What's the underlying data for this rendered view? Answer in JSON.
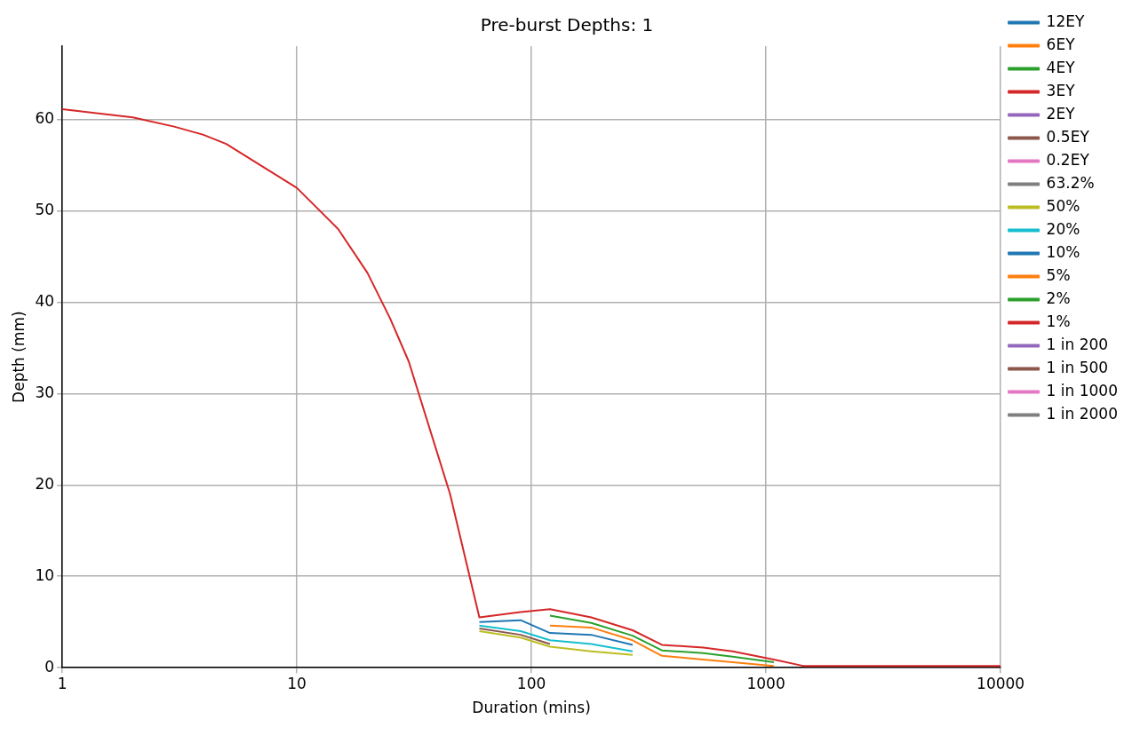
{
  "chart_data": {
    "type": "line",
    "title": "Pre-burst Depths: 1",
    "xlabel": "Duration (mins)",
    "ylabel": "Depth (mm)",
    "x": [
      1,
      2,
      3,
      4,
      5,
      10,
      15,
      20,
      25,
      30,
      45,
      60,
      90,
      120,
      180,
      270,
      360,
      540,
      720,
      1080,
      1440,
      2160,
      2880,
      4320,
      5760,
      7200,
      8640,
      10000
    ],
    "xlim": [
      1,
      10000
    ],
    "xticks": [
      1,
      10,
      100,
      1000,
      10000
    ],
    "ylim": [
      0,
      68
    ],
    "yticks": [
      0,
      10,
      20,
      30,
      40,
      50,
      60
    ],
    "log": "x",
    "grid": true,
    "legend": "right",
    "series": [
      {
        "name": "12EY",
        "color": "#1f77b4",
        "values": [
          null,
          null,
          null,
          null,
          null,
          null,
          null,
          null,
          null,
          null,
          null,
          null,
          null,
          null,
          null,
          null,
          null,
          null,
          null,
          null,
          null,
          null,
          null,
          null,
          null,
          null,
          null,
          null
        ]
      },
      {
        "name": "6EY",
        "color": "#ff7f0e",
        "values": [
          null,
          null,
          null,
          null,
          null,
          null,
          null,
          null,
          null,
          null,
          null,
          null,
          null,
          null,
          null,
          null,
          null,
          null,
          null,
          null,
          null,
          null,
          null,
          null,
          null,
          null,
          null,
          null
        ]
      },
      {
        "name": "4EY",
        "color": "#2ca02c",
        "values": [
          null,
          null,
          null,
          null,
          null,
          null,
          null,
          null,
          null,
          null,
          null,
          null,
          null,
          null,
          null,
          null,
          null,
          null,
          null,
          null,
          null,
          null,
          null,
          null,
          null,
          null,
          null,
          null
        ]
      },
      {
        "name": "3EY",
        "color": "#d62728",
        "values": [
          null,
          null,
          null,
          null,
          null,
          null,
          null,
          null,
          null,
          null,
          null,
          null,
          null,
          null,
          null,
          null,
          null,
          null,
          null,
          null,
          null,
          null,
          null,
          null,
          null,
          null,
          null,
          null
        ]
      },
      {
        "name": "2EY",
        "color": "#9467bd",
        "values": [
          null,
          null,
          null,
          null,
          null,
          null,
          null,
          null,
          null,
          null,
          null,
          null,
          null,
          null,
          null,
          null,
          null,
          null,
          null,
          null,
          null,
          null,
          null,
          null,
          null,
          null,
          null,
          null
        ]
      },
      {
        "name": "0.5EY",
        "color": "#8c564b",
        "values": [
          null,
          null,
          null,
          null,
          null,
          null,
          null,
          null,
          null,
          null,
          null,
          4.3,
          3.6,
          2.6,
          null,
          null,
          null,
          null,
          null,
          null,
          null,
          null,
          null,
          null,
          null,
          null,
          null,
          null
        ]
      },
      {
        "name": "0.2EY",
        "color": "#e377c2",
        "values": [
          null,
          null,
          null,
          null,
          null,
          null,
          null,
          null,
          null,
          null,
          null,
          null,
          null,
          null,
          null,
          null,
          null,
          null,
          null,
          null,
          null,
          null,
          null,
          null,
          null,
          null,
          null,
          null
        ]
      },
      {
        "name": "63.2%",
        "color": "#7f7f7f",
        "values": [
          null,
          null,
          null,
          null,
          null,
          null,
          null,
          null,
          null,
          null,
          null,
          null,
          null,
          null,
          null,
          null,
          null,
          null,
          null,
          null,
          null,
          null,
          null,
          null,
          null,
          null,
          null,
          null
        ]
      },
      {
        "name": "50%",
        "color": "#bcbd22",
        "values": [
          null,
          null,
          null,
          null,
          null,
          null,
          null,
          null,
          null,
          null,
          null,
          4.0,
          3.3,
          2.3,
          1.8,
          1.4,
          null,
          null,
          null,
          null,
          null,
          null,
          null,
          null,
          null,
          null,
          null,
          null
        ]
      },
      {
        "name": "20%",
        "color": "#17becf",
        "values": [
          null,
          null,
          null,
          null,
          null,
          null,
          null,
          null,
          null,
          null,
          null,
          4.6,
          4.0,
          3.0,
          2.6,
          1.8,
          null,
          null,
          null,
          null,
          null,
          null,
          null,
          null,
          null,
          null,
          null,
          null
        ]
      },
      {
        "name": "10%",
        "color": "#1f77b4",
        "values": [
          null,
          null,
          null,
          null,
          null,
          null,
          null,
          null,
          null,
          null,
          null,
          5.0,
          5.2,
          3.8,
          3.6,
          2.5,
          null,
          null,
          null,
          null,
          null,
          null,
          null,
          null,
          null,
          null,
          null,
          null
        ]
      },
      {
        "name": "5%",
        "color": "#ff7f0e",
        "values": [
          null,
          null,
          null,
          null,
          null,
          null,
          null,
          null,
          null,
          null,
          null,
          null,
          null,
          4.6,
          4.4,
          3.0,
          1.3,
          0.9,
          0.6,
          0.2,
          null,
          null,
          null,
          null,
          null,
          null,
          null,
          null
        ]
      },
      {
        "name": "2%",
        "color": "#2ca02c",
        "values": [
          null,
          null,
          null,
          null,
          null,
          null,
          null,
          null,
          null,
          null,
          null,
          null,
          null,
          5.7,
          4.9,
          3.5,
          1.9,
          1.6,
          1.2,
          0.6,
          null,
          null,
          null,
          null,
          null,
          null,
          null,
          null
        ]
      },
      {
        "name": "1%",
        "color": "#d62728",
        "values": [
          61.1,
          60.2,
          59.2,
          58.3,
          57.3,
          52.5,
          48,
          43.2,
          38.2,
          33.5,
          19,
          5.5,
          6.1,
          6.4,
          5.5,
          4.1,
          2.5,
          2.2,
          1.8,
          0.9,
          0.2,
          0.2,
          0.2,
          0.2,
          0.2,
          0.2,
          0.2,
          0.2
        ]
      },
      {
        "name": "1 in 200",
        "color": "#9467bd",
        "values": [
          null,
          null,
          null,
          null,
          null,
          null,
          null,
          null,
          null,
          null,
          null,
          null,
          null,
          null,
          null,
          null,
          null,
          null,
          null,
          null,
          null,
          null,
          null,
          null,
          null,
          null,
          null,
          null
        ]
      },
      {
        "name": "1 in 500",
        "color": "#8c564b",
        "values": [
          null,
          null,
          null,
          null,
          null,
          null,
          null,
          null,
          null,
          null,
          null,
          null,
          null,
          null,
          null,
          null,
          null,
          null,
          null,
          null,
          null,
          null,
          null,
          null,
          null,
          null,
          null,
          null
        ]
      },
      {
        "name": "1 in 1000",
        "color": "#e377c2",
        "values": [
          null,
          null,
          null,
          null,
          null,
          null,
          null,
          null,
          null,
          null,
          null,
          null,
          null,
          null,
          null,
          null,
          null,
          null,
          null,
          null,
          null,
          null,
          null,
          null,
          null,
          null,
          null,
          null
        ]
      },
      {
        "name": "1 in 2000",
        "color": "#7f7f7f",
        "values": [
          null,
          null,
          null,
          null,
          null,
          null,
          null,
          null,
          null,
          null,
          null,
          null,
          null,
          null,
          null,
          null,
          null,
          null,
          null,
          null,
          null,
          null,
          null,
          null,
          null,
          null,
          null,
          null
        ]
      }
    ]
  }
}
